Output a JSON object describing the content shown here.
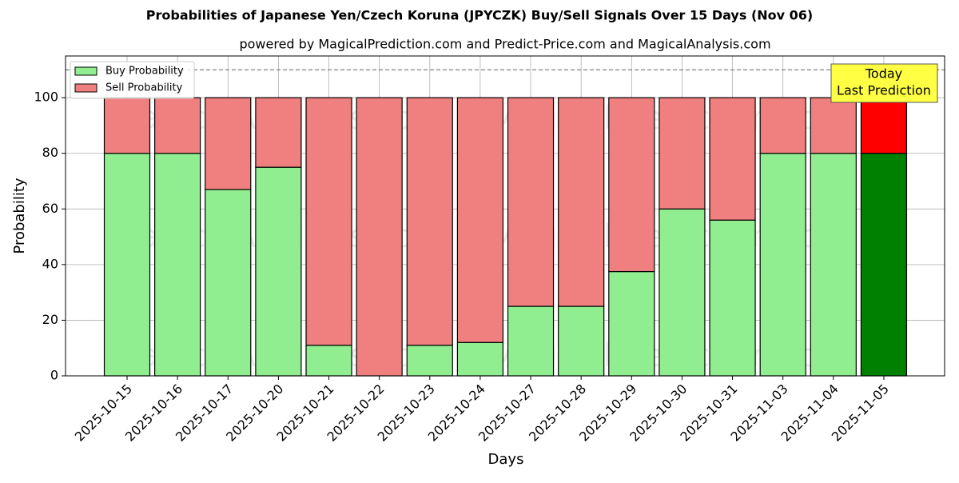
{
  "chart_data": {
    "type": "stacked_bar",
    "title": "Probabilities of Japanese Yen/Czech Koruna (JPYCZK) Buy/Sell Signals Over 15 Days (Nov 06)",
    "subtitle": "powered by MagicalPrediction.com and Predict-Price.com and MagicalAnalysis.com",
    "x_label": "Days",
    "y_label": "Probability",
    "categories": [
      "2025-10-15",
      "2025-10-16",
      "2025-10-17",
      "2025-10-20",
      "2025-10-21",
      "2025-10-22",
      "2025-10-23",
      "2025-10-24",
      "2025-10-27",
      "2025-10-28",
      "2025-10-29",
      "2025-10-30",
      "2025-10-31",
      "2025-11-03",
      "2025-11-04",
      "2025-11-05"
    ],
    "series": [
      {
        "name": "Buy Probability",
        "color": "#90ee90",
        "highlight_color": "#008000",
        "values": [
          80,
          80,
          67,
          75,
          11,
          0,
          11,
          12,
          25,
          25,
          37.5,
          60,
          56,
          80,
          80,
          80
        ]
      },
      {
        "name": "Sell Probability",
        "color": "#f08080",
        "highlight_color": "#ff0000",
        "values": [
          20,
          20,
          33,
          25,
          89,
          100,
          89,
          88,
          75,
          75,
          62.5,
          40,
          44,
          20,
          20,
          20
        ]
      }
    ],
    "highlight_index": 15,
    "ylim": [
      0,
      115
    ],
    "yticks": [
      0,
      20,
      40,
      60,
      80,
      100
    ],
    "hline": 110,
    "grid": true,
    "legend": "upper-left",
    "annotation": [
      "Today",
      "Last Prediction"
    ],
    "watermarks": [
      "MagicalAnalysis.com",
      "MagicalPrediction.com"
    ]
  }
}
